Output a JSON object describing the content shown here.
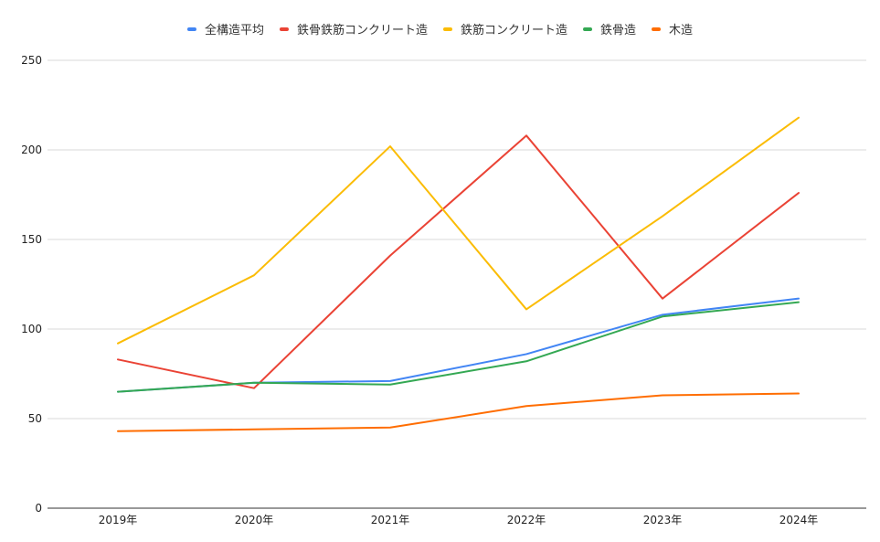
{
  "chart_data": {
    "type": "line",
    "title": "",
    "xlabel": "",
    "ylabel": "",
    "categories": [
      "2019年",
      "2020年",
      "2021年",
      "2022年",
      "2023年",
      "2024年"
    ],
    "ylim": [
      0,
      250
    ],
    "yticks": [
      0,
      50,
      100,
      150,
      200,
      250
    ],
    "grid": true,
    "legend_position": "top",
    "series": [
      {
        "name": "全構造平均",
        "color": "#4285F4",
        "values": [
          65,
          70,
          71,
          86,
          108,
          117
        ]
      },
      {
        "name": "鉄骨鉄筋コンクリート造",
        "color": "#EA4335",
        "values": [
          83,
          67,
          141,
          208,
          117,
          176
        ]
      },
      {
        "name": "鉄筋コンクリート造",
        "color": "#FBBC04",
        "values": [
          92,
          130,
          202,
          111,
          163,
          218
        ]
      },
      {
        "name": "鉄骨造",
        "color": "#34A853",
        "values": [
          65,
          70,
          69,
          82,
          107,
          115
        ]
      },
      {
        "name": "木造",
        "color": "#FF6D01",
        "values": [
          43,
          44,
          45,
          57,
          63,
          64
        ]
      }
    ]
  }
}
